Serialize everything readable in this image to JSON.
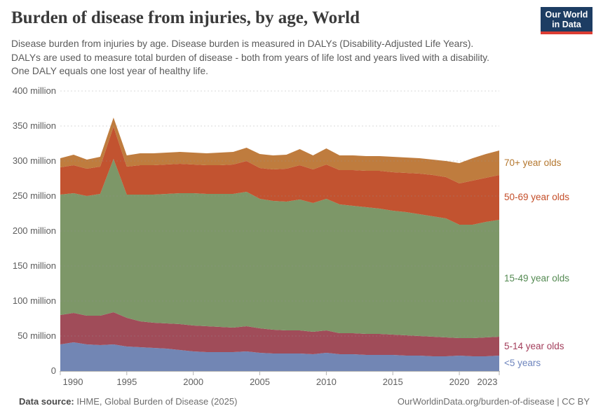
{
  "header": {
    "title": "Burden of disease from injuries, by age, World",
    "subtitle_lines": [
      "Disease burden from injuries by age. Disease burden is measured in DALYs (Disability-Adjusted Life Years).",
      "DALYs are used to measure total burden of disease - both from years of life lost and years lived with a disability.",
      "One DALY equals one lost year of healthy life."
    ],
    "logo": {
      "line1": "Our World",
      "line2": "in Data",
      "bg_color": "#1d3d63",
      "stripe_color": "#dc3d33"
    }
  },
  "chart_data": {
    "type": "area",
    "stacked": true,
    "title": "Burden of disease from injuries, by age, World",
    "x": [
      1990,
      1991,
      1992,
      1993,
      1994,
      1995,
      1996,
      1997,
      1998,
      1999,
      2000,
      2001,
      2002,
      2003,
      2004,
      2005,
      2006,
      2007,
      2008,
      2009,
      2010,
      2011,
      2012,
      2013,
      2014,
      2015,
      2016,
      2017,
      2018,
      2019,
      2020,
      2021,
      2022,
      2023
    ],
    "series": [
      {
        "name": "<5 years",
        "color": "#7286b4",
        "label_color": "#6d84bd",
        "values": [
          38,
          41,
          38,
          37,
          38,
          35,
          34,
          33,
          32,
          30,
          28,
          27,
          27,
          27,
          28,
          26,
          25,
          25,
          25,
          24,
          26,
          24,
          24,
          23,
          23,
          23,
          22,
          22,
          21,
          21,
          22,
          21,
          21,
          22
        ]
      },
      {
        "name": "5-14 year olds",
        "color": "#a04c59",
        "label_color": "#a33e5b",
        "values": [
          42,
          42,
          41,
          42,
          46,
          41,
          37,
          36,
          36,
          37,
          37,
          37,
          36,
          35,
          36,
          35,
          34,
          33,
          33,
          32,
          32,
          30,
          30,
          30,
          30,
          29,
          29,
          28,
          28,
          27,
          25,
          26,
          27,
          27
        ]
      },
      {
        "name": "15-49 year olds",
        "color": "#7d9768",
        "label_color": "#548a52",
        "values": [
          172,
          171,
          171,
          174,
          219,
          176,
          181,
          183,
          185,
          187,
          189,
          189,
          190,
          191,
          192,
          185,
          184,
          184,
          187,
          184,
          188,
          184,
          182,
          181,
          179,
          177,
          176,
          174,
          172,
          170,
          162,
          162,
          165,
          167
        ]
      },
      {
        "name": "50-69 year olds",
        "color": "#c25330",
        "label_color": "#c44e29",
        "values": [
          39,
          40,
          39,
          39,
          46,
          40,
          42,
          42,
          42,
          42,
          41,
          41,
          41,
          42,
          44,
          44,
          45,
          47,
          49,
          48,
          49,
          49,
          51,
          52,
          54,
          55,
          56,
          58,
          59,
          59,
          59,
          63,
          63,
          64
        ]
      },
      {
        "name": "70+ year olds",
        "color": "#bf7c3e",
        "label_color": "#b4772e",
        "values": [
          13,
          15,
          13,
          14,
          13,
          16,
          17,
          17,
          17,
          17,
          17,
          17,
          18,
          18,
          19,
          20,
          20,
          20,
          23,
          20,
          23,
          21,
          21,
          21,
          21,
          22,
          22,
          22,
          22,
          23,
          29,
          32,
          34,
          35
        ]
      }
    ],
    "ylim": [
      0,
      400
    ],
    "yticks": [
      0,
      50,
      100,
      150,
      200,
      250,
      300,
      350,
      400
    ],
    "ytick_suffix": " million",
    "xticks": [
      1990,
      1995,
      2000,
      2005,
      2010,
      2015,
      2020,
      2023
    ],
    "xlabel": "",
    "ylabel": "",
    "grid": "horizontal-dashed",
    "legend_position": "right"
  },
  "footer": {
    "source_label": "Data source:",
    "source_text": " IHME, Global Burden of Disease (2025)",
    "attribution": "OurWorldinData.org/burden-of-disease | CC BY"
  }
}
